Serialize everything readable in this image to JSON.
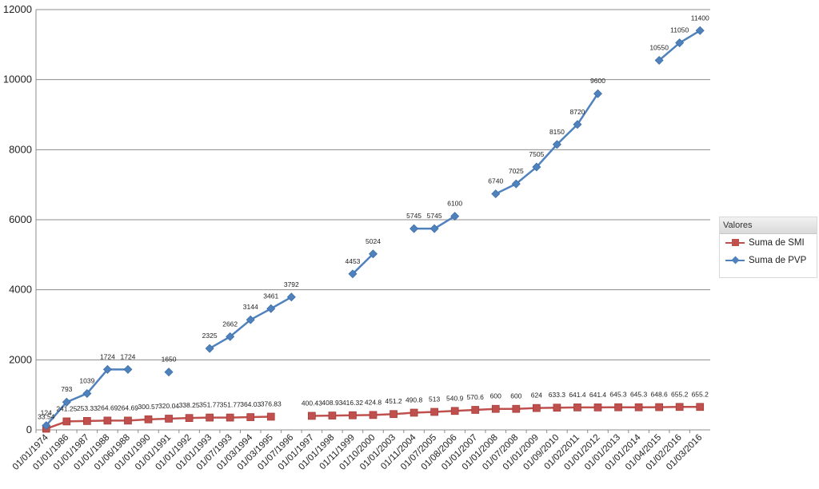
{
  "chart_data": {
    "type": "line",
    "categories": [
      "01/01/1974",
      "01/01/1986",
      "01/01/1987",
      "01/01/1988",
      "01/06/1988",
      "01/01/1990",
      "01/01/1991",
      "01/01/1992",
      "01/01/1993",
      "01/07/1993",
      "01/03/1994",
      "01/03/1995",
      "01/07/1996",
      "01/01/1997",
      "01/01/1998",
      "01/11/1999",
      "01/10/2000",
      "01/01/2003",
      "01/11/2004",
      "01/07/2005",
      "01/08/2006",
      "01/01/2007",
      "01/01/2008",
      "01/07/2008",
      "01/01/2009",
      "01/09/2010",
      "01/02/2011",
      "01/01/2012",
      "01/01/2013",
      "01/01/2014",
      "01/04/2015",
      "01/02/2016",
      "01/03/2016"
    ],
    "series": [
      {
        "name": "Suma de SMI",
        "color": "#c0504d",
        "marker": "square",
        "values": [
          33.54,
          241.25,
          253.33,
          264.69,
          264.69,
          300.57,
          320.04,
          338.25,
          351.77,
          351.77,
          364.03,
          376.83,
          null,
          400.43,
          408.93,
          416.32,
          424.8,
          451.2,
          490.8,
          513,
          540.9,
          570.6,
          600,
          600,
          624,
          633.3,
          641.4,
          641.4,
          645.3,
          645.3,
          648.6,
          655.2,
          655.2
        ],
        "labels": [
          "33.54",
          "241.25",
          "253.33",
          "264.69",
          "264.69",
          "300.57",
          "320.04",
          "338.25",
          "351.77",
          "351.77",
          "364.03",
          "376.83",
          "",
          "400.43",
          "408.93",
          "416.32",
          "424.8",
          "451.2",
          "490.8",
          "513",
          "540.9",
          "570.6",
          "600",
          "600",
          "624",
          "633.3",
          "641.4",
          "641.4",
          "645.3",
          "645.3",
          "648.6",
          "655.2",
          "655.2"
        ]
      },
      {
        "name": "Suma de PVP",
        "color": "#4f81bd",
        "marker": "diamond",
        "values": [
          124,
          793,
          1039,
          1724,
          1724,
          null,
          1650,
          null,
          2325,
          2662,
          3144,
          3461,
          3792,
          null,
          null,
          4453,
          5024,
          null,
          5745,
          5745,
          6100,
          null,
          6740,
          7025,
          7505,
          8150,
          8720,
          9600,
          null,
          null,
          10550,
          11050,
          11400
        ],
        "labels": [
          "124",
          "793",
          "1039",
          "1724",
          "1724",
          "",
          "1650",
          "",
          "2325",
          "2662",
          "3144",
          "3461",
          "3792",
          "",
          "",
          "4453",
          "5024",
          "",
          "5745",
          "5745",
          "6100",
          "",
          "6740",
          "7025",
          "7505",
          "8150",
          "8720",
          "9600",
          "",
          "",
          "10550",
          "11050",
          "11400"
        ]
      }
    ],
    "y_ticks": [
      "0",
      "2000",
      "4000",
      "6000",
      "8000",
      "10000",
      "12000"
    ],
    "ylim": [
      0,
      12000
    ],
    "grid": true,
    "legend_position": "right",
    "legend_title": "Valores"
  }
}
